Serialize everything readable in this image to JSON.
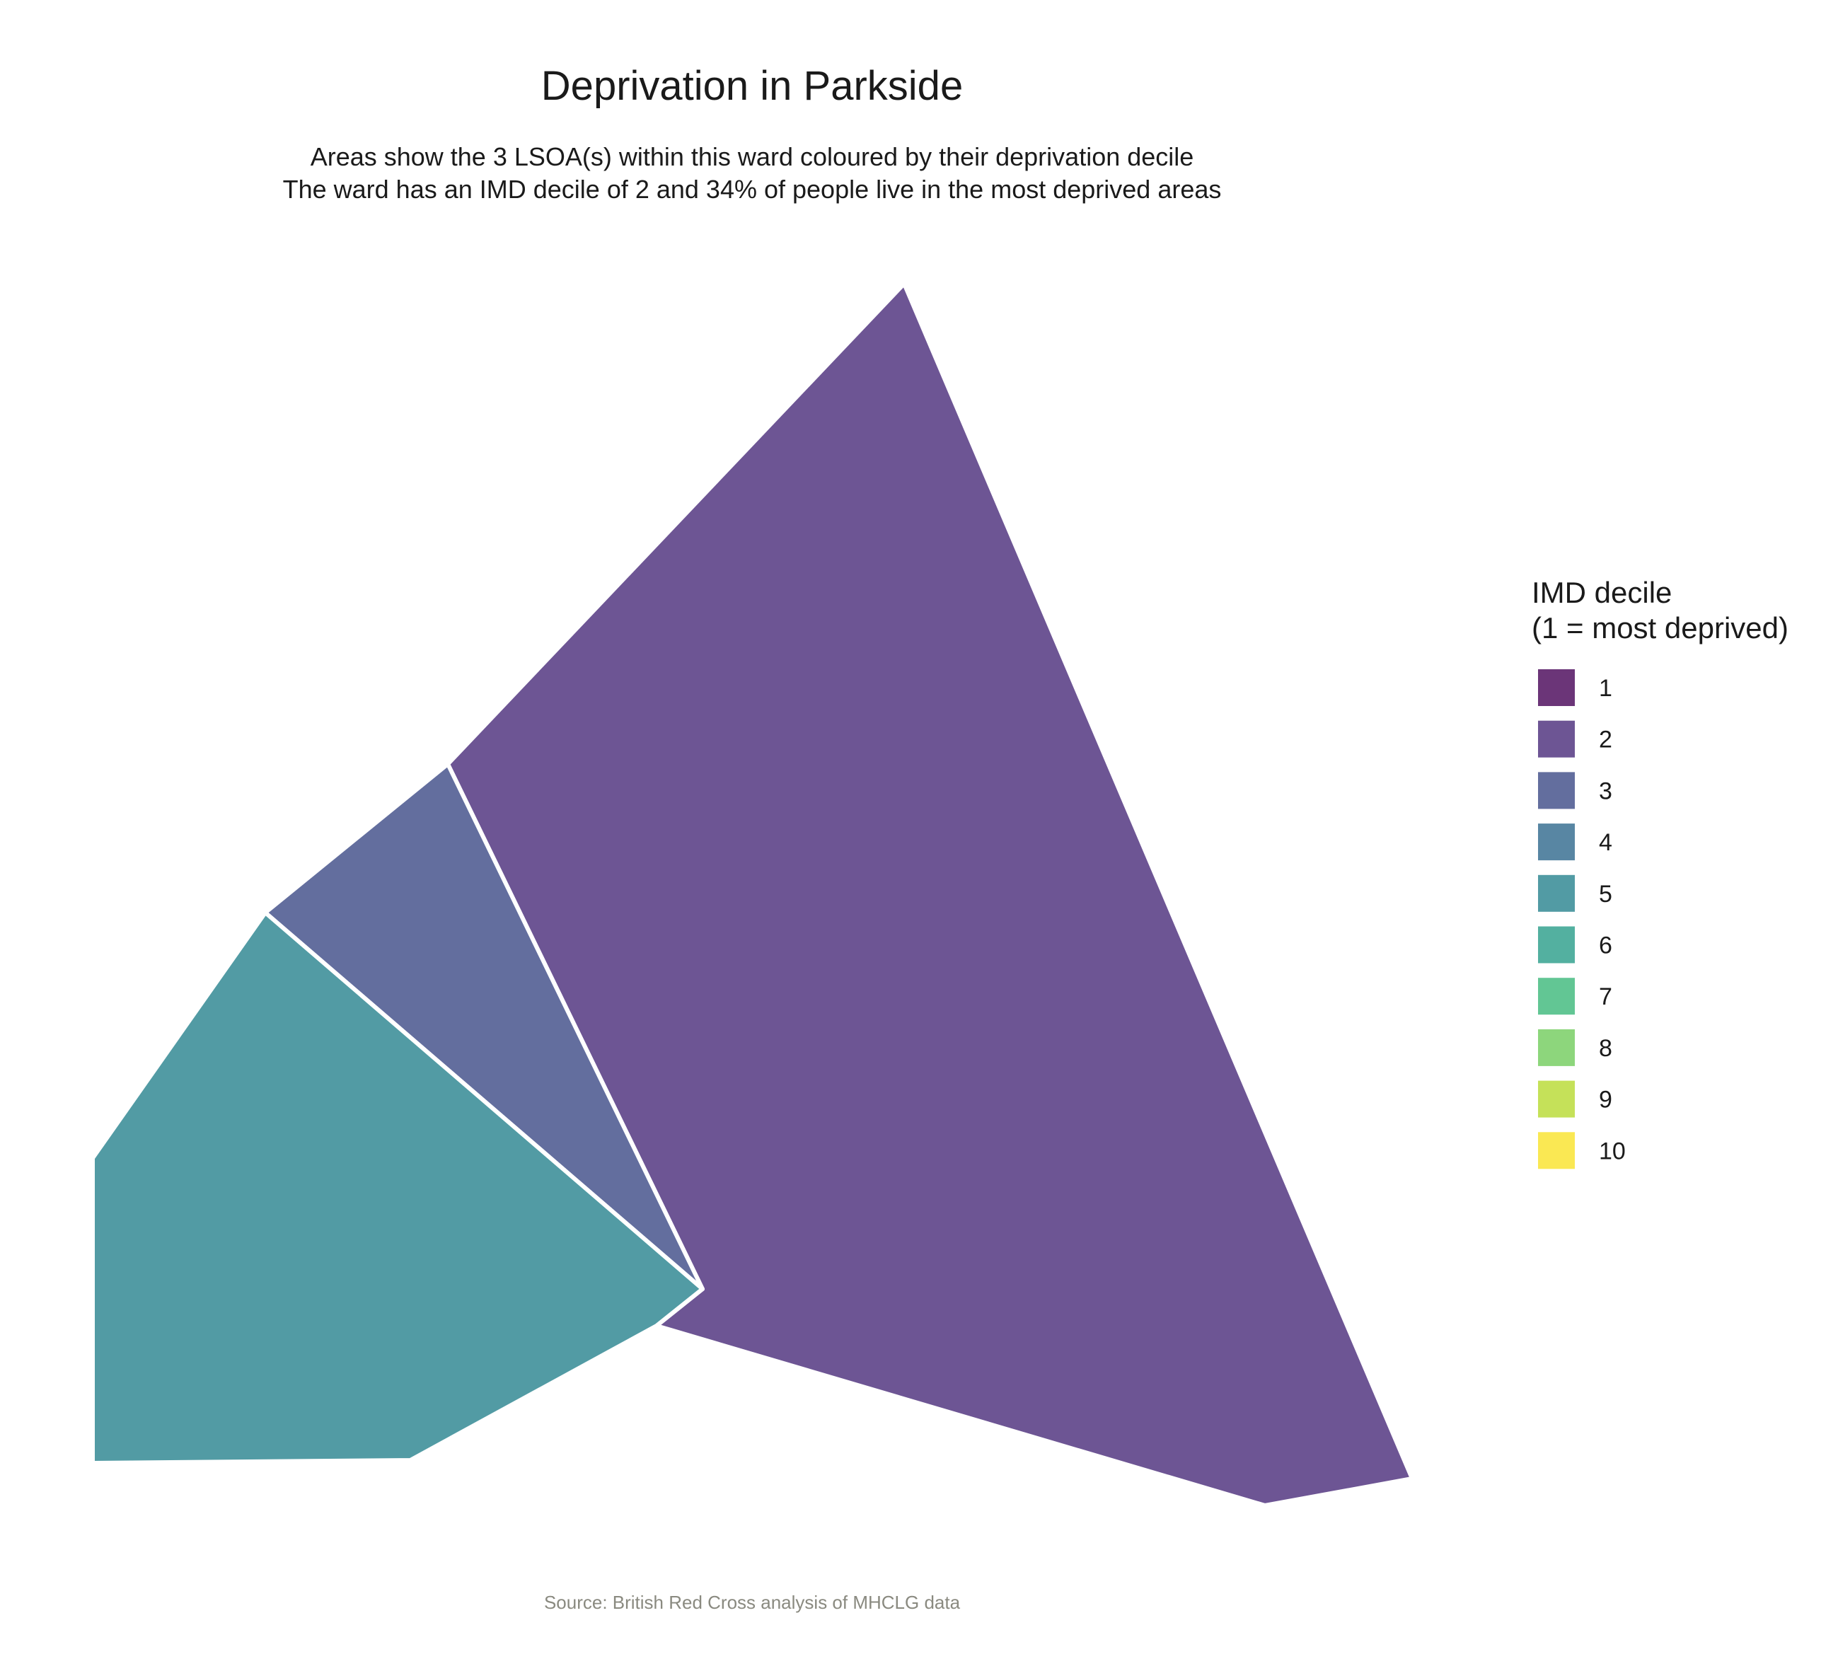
{
  "map": {
    "title": "Deprivation in Parkside",
    "subtitle_line_1": "Areas show the 3 LSOA(s) within this ward coloured by their deprivation decile",
    "subtitle_line_2": "The ward has an IMD decile of 2 and 34% of people live in the most deprived areas",
    "caption": "Source: British Red Cross analysis of MHCLG data",
    "ward": "Parkside",
    "lsoa_count": 3,
    "ward_imd_decile": 2,
    "percent_in_most_deprived_areas": 34,
    "areas": [
      {
        "name": "lsoa-decile-2",
        "imd_decile": 2,
        "color": "#6d5594"
      },
      {
        "name": "lsoa-decile-3",
        "imd_decile": 3,
        "color": "#636e9e"
      },
      {
        "name": "lsoa-decile-5",
        "imd_decile": 5,
        "color": "#529ba4"
      }
    ]
  },
  "legend": {
    "title_line_1": "IMD decile",
    "title_line_2": "(1 = most deprived)",
    "items": [
      {
        "label": "1",
        "color": "#6b3578"
      },
      {
        "label": "2",
        "color": "#6d5594"
      },
      {
        "label": "3",
        "color": "#636e9e"
      },
      {
        "label": "4",
        "color": "#5886a3"
      },
      {
        "label": "5",
        "color": "#529ba4"
      },
      {
        "label": "6",
        "color": "#53b0a0"
      },
      {
        "label": "7",
        "color": "#62c694"
      },
      {
        "label": "8",
        "color": "#8dd67c"
      },
      {
        "label": "9",
        "color": "#c5e159"
      },
      {
        "label": "10",
        "color": "#fae853"
      }
    ]
  }
}
